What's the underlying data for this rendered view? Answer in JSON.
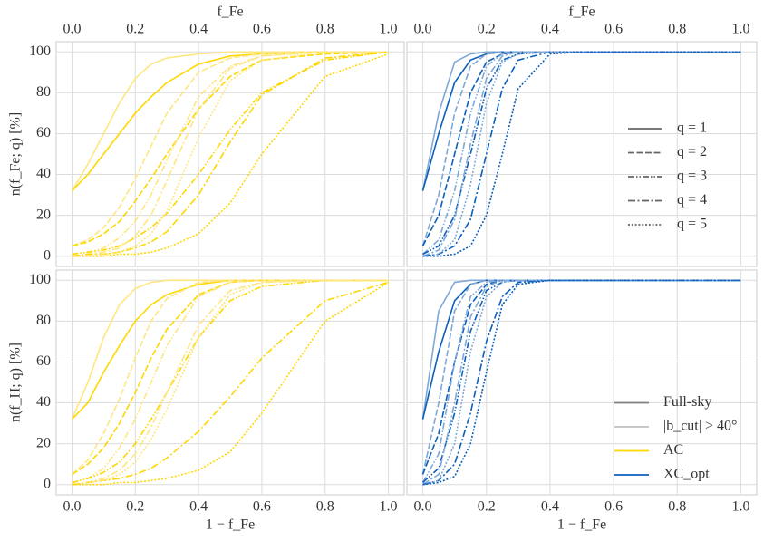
{
  "chart_data": [
    {
      "type": "line",
      "top_xlabel": "f_Fe",
      "ylabel": "n(f_Fe; q) [%]",
      "x": [
        0,
        0.05,
        0.1,
        0.15,
        0.2,
        0.25,
        0.3,
        0.4,
        0.5,
        0.6,
        0.8,
        1.0
      ],
      "xlim": [
        -0.05,
        1.05
      ],
      "ylim": [
        -5,
        105
      ],
      "top_xticks": [
        {
          "value": 0,
          "label": "0.0"
        },
        {
          "value": 0.2,
          "label": "0.2"
        },
        {
          "value": 0.4,
          "label": "0.4"
        },
        {
          "value": 0.6,
          "label": "0.6"
        },
        {
          "value": 0.8,
          "label": "0.8"
        },
        {
          "value": 1.0,
          "label": "1.0"
        }
      ],
      "yticks": [
        0,
        20,
        40,
        60,
        80,
        100
      ],
      "grid": true,
      "series": [
        {
          "color": "#ffe680",
          "dash": "solid",
          "values": [
            32,
            45,
            60,
            75,
            87,
            94,
            97,
            99,
            100,
            100,
            100,
            100
          ]
        },
        {
          "color": "#ffd700",
          "dash": "solid",
          "values": [
            32,
            40,
            50,
            60,
            70,
            78,
            85,
            94,
            98,
            99,
            100,
            100
          ]
        },
        {
          "color": "#ffe680",
          "dash": "dashed",
          "values": [
            5,
            8,
            14,
            24,
            38,
            54,
            70,
            90,
            97,
            99,
            100,
            100
          ]
        },
        {
          "color": "#ffd700",
          "dash": "dashed",
          "values": [
            5,
            7,
            11,
            17,
            27,
            38,
            50,
            72,
            88,
            96,
            99,
            100
          ]
        },
        {
          "color": "#ffe680",
          "dash": "dashdotdot",
          "values": [
            1,
            2,
            4,
            9,
            17,
            30,
            47,
            78,
            93,
            98,
            100,
            100
          ]
        },
        {
          "color": "#ffd700",
          "dash": "dashdotdot",
          "values": [
            1,
            2,
            3,
            5,
            9,
            14,
            21,
            40,
            62,
            80,
            96,
            100
          ]
        },
        {
          "color": "#ffe680",
          "dash": "dashdot",
          "values": [
            0,
            1,
            2,
            4,
            10,
            20,
            37,
            72,
            92,
            98,
            100,
            100
          ]
        },
        {
          "color": "#ffd700",
          "dash": "dashdot",
          "values": [
            0,
            1,
            1,
            2,
            4,
            7,
            12,
            30,
            56,
            79,
            97,
            100
          ]
        },
        {
          "color": "#ffe680",
          "dash": "dotted",
          "values": [
            0,
            0,
            1,
            2,
            5,
            11,
            22,
            58,
            86,
            96,
            100,
            100
          ]
        },
        {
          "color": "#ffd700",
          "dash": "dotted",
          "values": [
            0,
            0,
            0,
            1,
            1,
            2,
            4,
            11,
            26,
            50,
            88,
            99
          ]
        }
      ]
    },
    {
      "type": "line",
      "top_xlabel": "f_Fe",
      "x": [
        0,
        0.05,
        0.1,
        0.15,
        0.2,
        0.25,
        0.3,
        0.4,
        0.5,
        0.6,
        0.8,
        1.0
      ],
      "xlim": [
        -0.05,
        1.05
      ],
      "ylim": [
        -5,
        105
      ],
      "top_xticks": [
        {
          "value": 0,
          "label": "0.0"
        },
        {
          "value": 0.2,
          "label": "0.2"
        },
        {
          "value": 0.4,
          "label": "0.4"
        },
        {
          "value": 0.6,
          "label": "0.6"
        },
        {
          "value": 0.8,
          "label": "0.8"
        },
        {
          "value": 1.0,
          "label": "1.0"
        }
      ],
      "grid": true,
      "legend": {
        "position": "center right",
        "items": [
          {
            "label": "q = 1",
            "color": "#666666",
            "dash": "solid"
          },
          {
            "label": "q = 2",
            "color": "#666666",
            "dash": "dashed"
          },
          {
            "label": "q = 3",
            "color": "#666666",
            "dash": "dashdotdot"
          },
          {
            "label": "q = 4",
            "color": "#666666",
            "dash": "dashdot"
          },
          {
            "label": "q = 5",
            "color": "#666666",
            "dash": "dotted"
          }
        ]
      },
      "series": [
        {
          "color": "#7fa8d6",
          "dash": "solid",
          "values": [
            32,
            70,
            95,
            99,
            100,
            100,
            100,
            100,
            100,
            100,
            100,
            100
          ]
        },
        {
          "color": "#0b5fbd",
          "dash": "solid",
          "values": [
            32,
            60,
            85,
            96,
            99,
            100,
            100,
            100,
            100,
            100,
            100,
            100
          ]
        },
        {
          "color": "#7fa8d6",
          "dash": "dashed",
          "values": [
            5,
            30,
            70,
            93,
            99,
            100,
            100,
            100,
            100,
            100,
            100,
            100
          ]
        },
        {
          "color": "#0b5fbd",
          "dash": "dashed",
          "values": [
            5,
            20,
            50,
            80,
            95,
            99,
            100,
            100,
            100,
            100,
            100,
            100
          ]
        },
        {
          "color": "#7fa8d6",
          "dash": "dashdotdot",
          "values": [
            1,
            8,
            32,
            70,
            93,
            99,
            100,
            100,
            100,
            100,
            100,
            100
          ]
        },
        {
          "color": "#0b5fbd",
          "dash": "dashdotdot",
          "values": [
            1,
            5,
            20,
            50,
            82,
            96,
            99,
            100,
            100,
            100,
            100,
            100
          ]
        },
        {
          "color": "#7fa8d6",
          "dash": "dashdot",
          "values": [
            0,
            3,
            18,
            55,
            87,
            98,
            100,
            100,
            100,
            100,
            100,
            100
          ]
        },
        {
          "color": "#0b5fbd",
          "dash": "dashdot",
          "values": [
            0,
            1,
            5,
            18,
            50,
            82,
            96,
            100,
            100,
            100,
            100,
            100
          ]
        },
        {
          "color": "#7fa8d6",
          "dash": "dotted",
          "values": [
            0,
            1,
            8,
            35,
            75,
            95,
            99,
            100,
            100,
            100,
            100,
            100
          ]
        },
        {
          "color": "#0b5fbd",
          "dash": "dotted",
          "values": [
            0,
            0,
            1,
            5,
            20,
            50,
            82,
            99,
            100,
            100,
            100,
            100
          ]
        }
      ]
    },
    {
      "type": "line",
      "xlabel": "1 − f_Fe",
      "ylabel": "n(f_H; q) [%]",
      "x": [
        0,
        0.05,
        0.1,
        0.15,
        0.2,
        0.25,
        0.3,
        0.4,
        0.5,
        0.6,
        0.8,
        1.0
      ],
      "xlim": [
        -0.05,
        1.05
      ],
      "ylim": [
        -5,
        105
      ],
      "xticks": [
        {
          "value": 0,
          "label": "0.0"
        },
        {
          "value": 0.2,
          "label": "0.2"
        },
        {
          "value": 0.4,
          "label": "0.4"
        },
        {
          "value": 0.6,
          "label": "0.6"
        },
        {
          "value": 0.8,
          "label": "0.8"
        },
        {
          "value": 1.0,
          "label": "1.0"
        }
      ],
      "yticks": [
        0,
        20,
        40,
        60,
        80,
        100
      ],
      "grid": true,
      "series": [
        {
          "color": "#ffe680",
          "dash": "solid",
          "values": [
            32,
            50,
            72,
            88,
            96,
            99,
            100,
            100,
            100,
            100,
            100,
            100
          ]
        },
        {
          "color": "#ffd700",
          "dash": "solid",
          "values": [
            32,
            40,
            55,
            68,
            80,
            88,
            93,
            98,
            100,
            100,
            100,
            100
          ]
        },
        {
          "color": "#ffe680",
          "dash": "dashed",
          "values": [
            5,
            12,
            25,
            42,
            62,
            80,
            91,
            99,
            100,
            100,
            100,
            100
          ]
        },
        {
          "color": "#ffd700",
          "dash": "dashed",
          "values": [
            5,
            10,
            18,
            30,
            45,
            62,
            76,
            93,
            99,
            100,
            100,
            100
          ]
        },
        {
          "color": "#ffe680",
          "dash": "dashdotdot",
          "values": [
            1,
            3,
            8,
            18,
            32,
            50,
            68,
            92,
            99,
            100,
            100,
            100
          ]
        },
        {
          "color": "#ffd700",
          "dash": "dashdotdot",
          "values": [
            1,
            3,
            6,
            11,
            20,
            32,
            45,
            72,
            90,
            97,
            100,
            100
          ]
        },
        {
          "color": "#ffe680",
          "dash": "dashdot",
          "values": [
            0,
            1,
            3,
            7,
            15,
            28,
            45,
            78,
            95,
            99,
            100,
            100
          ]
        },
        {
          "color": "#ffd700",
          "dash": "dashdot",
          "values": [
            0,
            1,
            2,
            3,
            5,
            8,
            13,
            26,
            43,
            62,
            90,
            99
          ]
        },
        {
          "color": "#ffe680",
          "dash": "dotted",
          "values": [
            0,
            1,
            2,
            5,
            11,
            22,
            37,
            72,
            93,
            99,
            100,
            100
          ]
        },
        {
          "color": "#ffd700",
          "dash": "dotted",
          "values": [
            0,
            0,
            0,
            1,
            1,
            2,
            3,
            7,
            16,
            35,
            80,
            99
          ]
        }
      ]
    },
    {
      "type": "line",
      "xlabel": "1 − f_Fe",
      "x": [
        0,
        0.05,
        0.1,
        0.15,
        0.2,
        0.25,
        0.3,
        0.4,
        0.5,
        0.6,
        0.8,
        1.0
      ],
      "xlim": [
        -0.05,
        1.05
      ],
      "ylim": [
        -5,
        105
      ],
      "xticks": [
        {
          "value": 0,
          "label": "0.0"
        },
        {
          "value": 0.2,
          "label": "0.2"
        },
        {
          "value": 0.4,
          "label": "0.4"
        },
        {
          "value": 0.6,
          "label": "0.6"
        },
        {
          "value": 0.8,
          "label": "0.8"
        },
        {
          "value": 1.0,
          "label": "1.0"
        }
      ],
      "grid": true,
      "legend": {
        "position": "lower right",
        "items": [
          {
            "label": "Full-sky",
            "color": "#808080",
            "dash": "solid"
          },
          {
            "label": "|b_cut| > 40°",
            "color": "#c0c0c0",
            "dash": "solid"
          },
          {
            "label": "AC",
            "color": "#ffd700",
            "dash": "solid"
          },
          {
            "label": "XC_opt",
            "color": "#0b5fbd",
            "dash": "solid"
          }
        ]
      },
      "series": [
        {
          "color": "#7fa8d6",
          "dash": "solid",
          "values": [
            32,
            85,
            99,
            100,
            100,
            100,
            100,
            100,
            100,
            100,
            100,
            100
          ]
        },
        {
          "color": "#0b5fbd",
          "dash": "solid",
          "values": [
            32,
            65,
            90,
            98,
            100,
            100,
            100,
            100,
            100,
            100,
            100,
            100
          ]
        },
        {
          "color": "#7fa8d6",
          "dash": "dashed",
          "values": [
            5,
            40,
            85,
            98,
            100,
            100,
            100,
            100,
            100,
            100,
            100,
            100
          ]
        },
        {
          "color": "#0b5fbd",
          "dash": "dashed",
          "values": [
            5,
            25,
            60,
            88,
            98,
            100,
            100,
            100,
            100,
            100,
            100,
            100
          ]
        },
        {
          "color": "#7fa8d6",
          "dash": "dashdotdot",
          "values": [
            1,
            15,
            60,
            92,
            99,
            100,
            100,
            100,
            100,
            100,
            100,
            100
          ]
        },
        {
          "color": "#0b5fbd",
          "dash": "dashdotdot",
          "values": [
            1,
            8,
            35,
            75,
            95,
            99,
            100,
            100,
            100,
            100,
            100,
            100
          ]
        },
        {
          "color": "#7fa8d6",
          "dash": "dashdot",
          "values": [
            0,
            5,
            40,
            82,
            97,
            100,
            100,
            100,
            100,
            100,
            100,
            100
          ]
        },
        {
          "color": "#0b5fbd",
          "dash": "dashdot",
          "values": [
            0,
            2,
            10,
            35,
            70,
            92,
            99,
            100,
            100,
            100,
            100,
            100
          ]
        },
        {
          "color": "#7fa8d6",
          "dash": "dotted",
          "values": [
            0,
            2,
            20,
            65,
            92,
            99,
            100,
            100,
            100,
            100,
            100,
            100
          ]
        },
        {
          "color": "#0b5fbd",
          "dash": "dotted",
          "values": [
            0,
            1,
            4,
            20,
            55,
            88,
            98,
            100,
            100,
            100,
            100,
            100
          ]
        }
      ]
    }
  ]
}
